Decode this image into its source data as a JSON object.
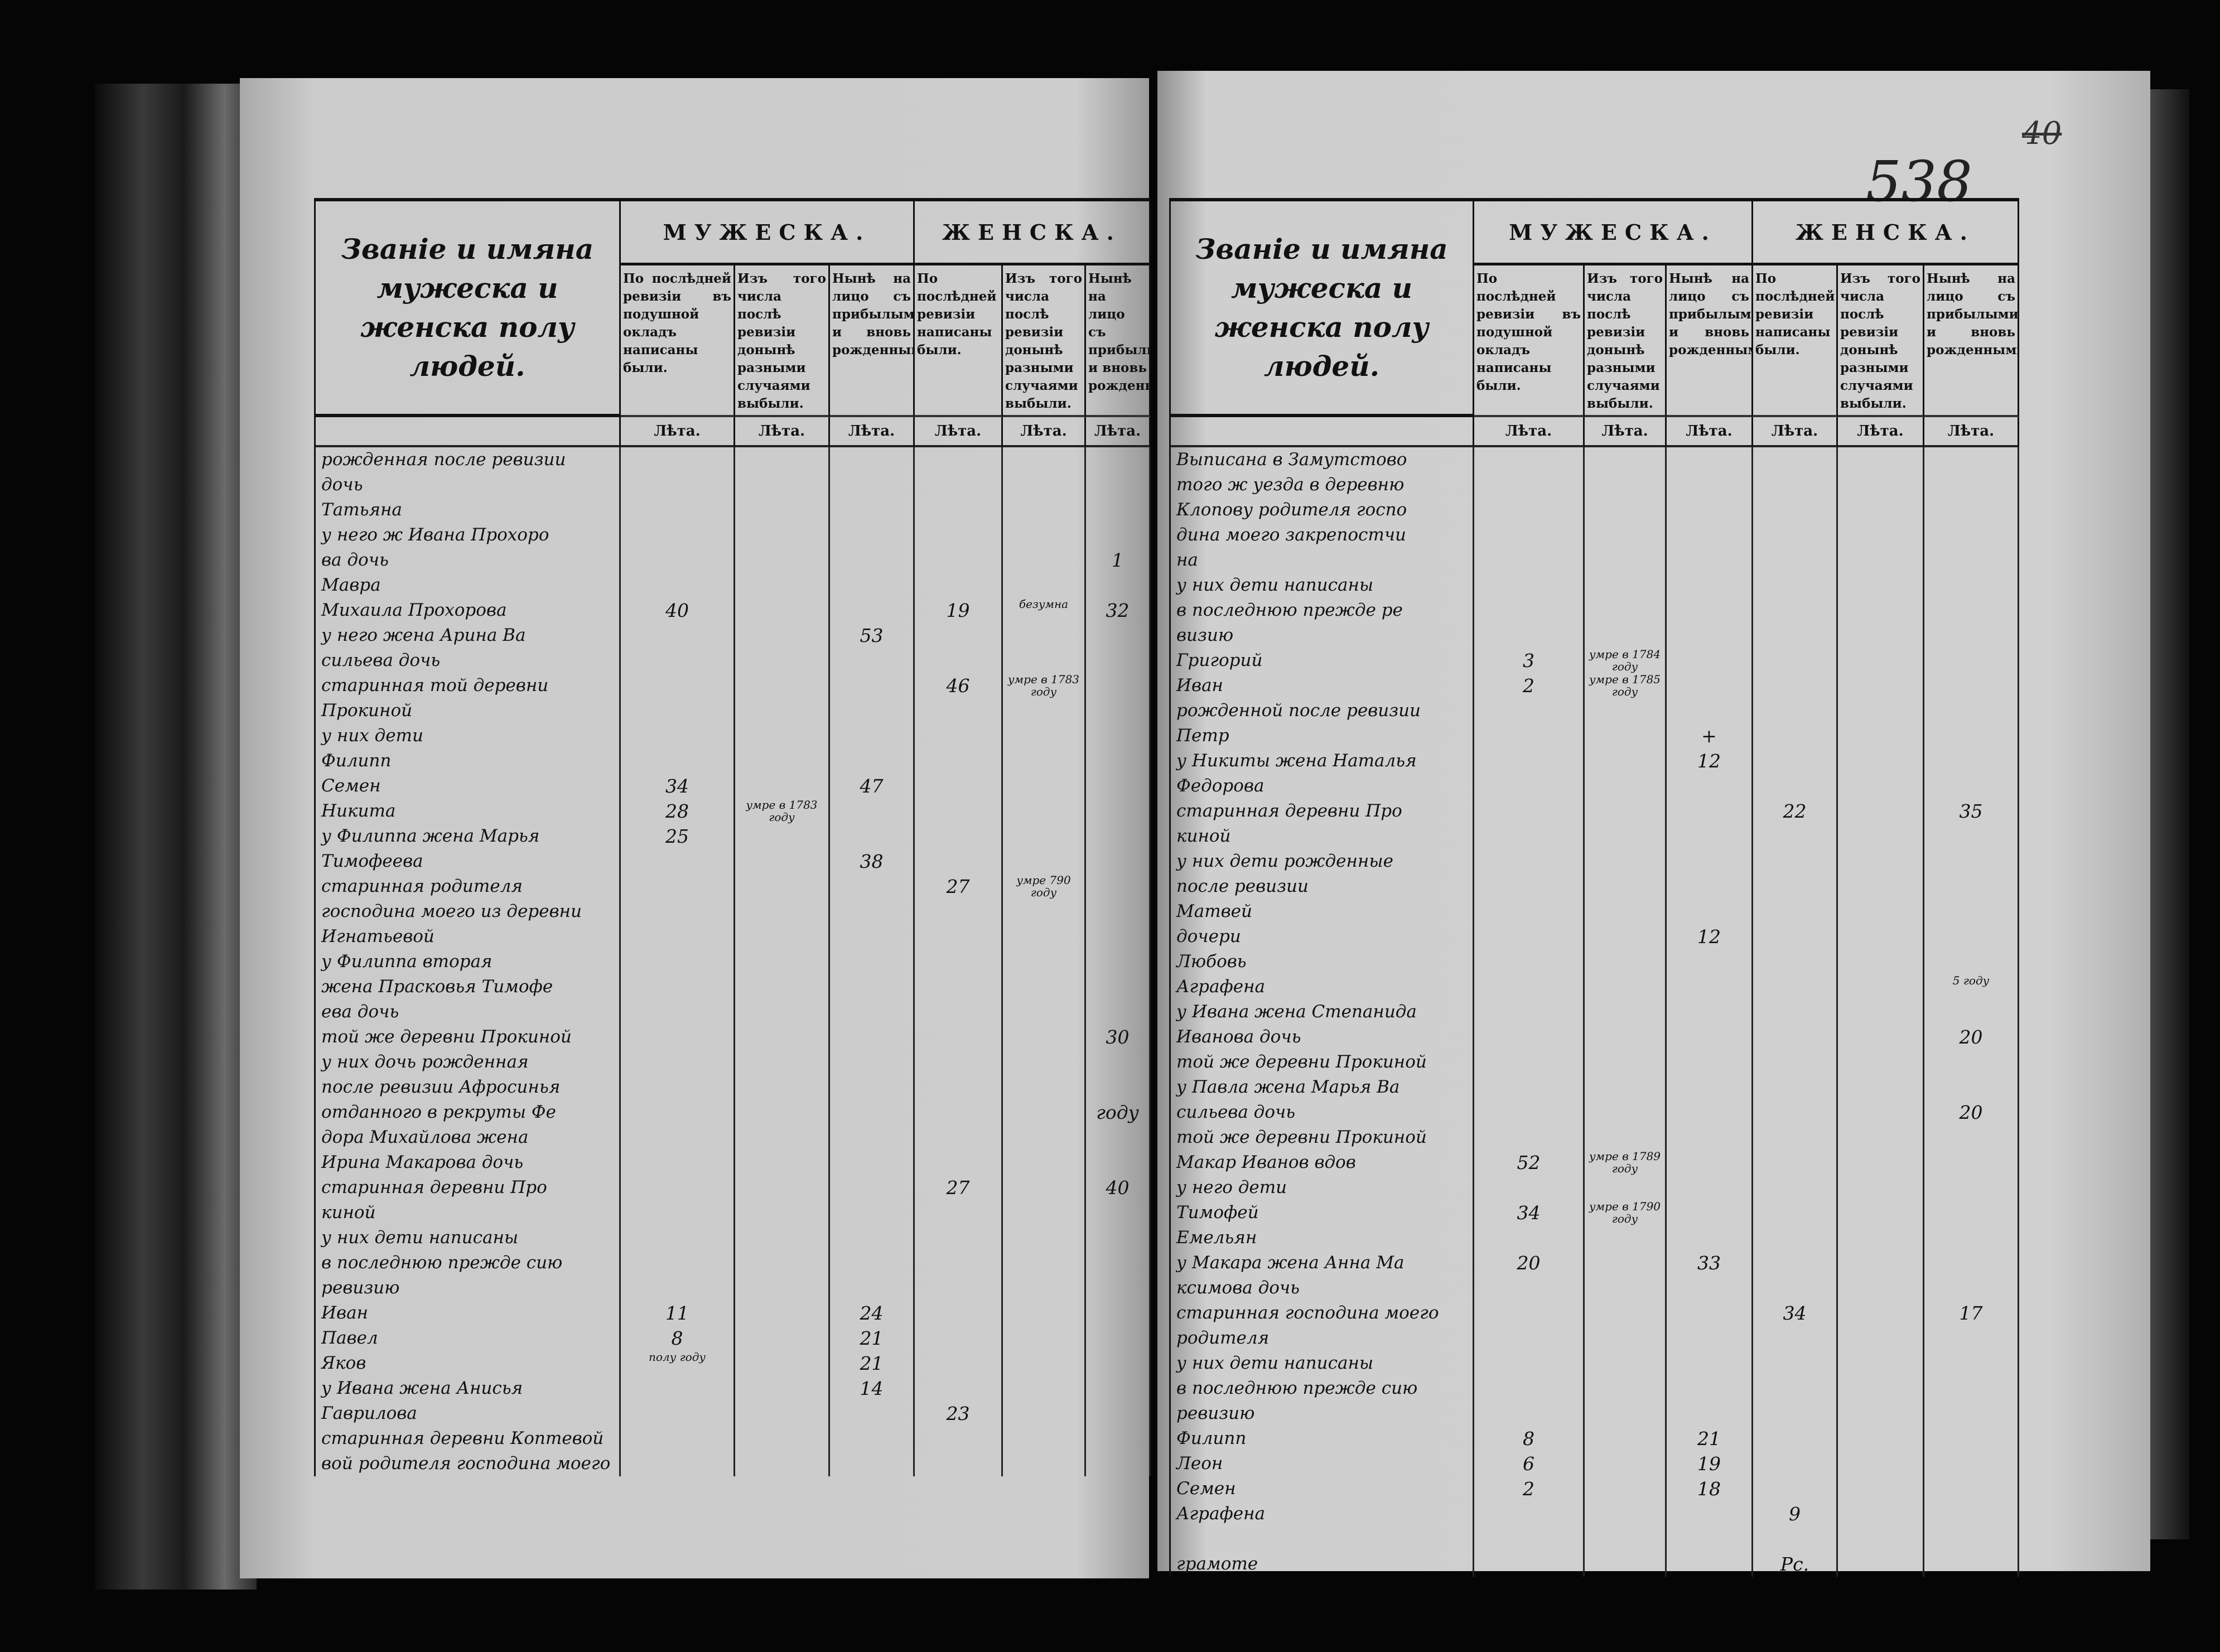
{
  "header": {
    "title": "Званіе и имяна мужеска и женска полу людей.",
    "male": "МУЖЕСКА.",
    "female": "ЖЕНСКА.",
    "sub_male_1": "По послѣдней ревизіи въ подушной окладъ написаны были.",
    "sub_out": "Изъ того числа послѣ ревизіи донынѣ разными случаями выбыли.",
    "sub_now": "Нынѣ на лицо съ прибылыми и вновь рожденными.",
    "sub_female_1": "По послѣдней ревизіи написаны были.",
    "years_label": "Лѣта."
  },
  "left_page": {
    "rows": [
      {
        "t": "рожденная после ревизии",
        "v": [
          "",
          "",
          "",
          "",
          "",
          ""
        ]
      },
      {
        "t": "дочь",
        "v": [
          "",
          "",
          "",
          "",
          "",
          ""
        ]
      },
      {
        "t": "Татьяна",
        "v": [
          "",
          "",
          "",
          "",
          "",
          ""
        ]
      },
      {
        "t": "у него ж Ивана Прохоро",
        "v": [
          "",
          "",
          "",
          "",
          "",
          ""
        ]
      },
      {
        "t": "ва дочь",
        "v": [
          "",
          "",
          "",
          "",
          "",
          "1"
        ]
      },
      {
        "t": "Мавра",
        "v": [
          "",
          "",
          "",
          "",
          "",
          ""
        ]
      },
      {
        "t": "Михаила Прохорова",
        "v": [
          "40",
          "",
          "",
          "19",
          "безумна",
          "32"
        ]
      },
      {
        "t": "у него жена Арина Ва",
        "v": [
          "",
          "",
          "53",
          "",
          "",
          ""
        ]
      },
      {
        "t": "сильева дочь",
        "v": [
          "",
          "",
          "",
          "",
          "",
          ""
        ]
      },
      {
        "t": "старинная той деревни",
        "v": [
          "",
          "",
          "",
          "46",
          "умре в 1783 году",
          ""
        ]
      },
      {
        "t": "Прокиной",
        "v": [
          "",
          "",
          "",
          "",
          "",
          ""
        ]
      },
      {
        "t": "    у них дети",
        "v": [
          "",
          "",
          "",
          "",
          "",
          ""
        ]
      },
      {
        "t": "Филипп",
        "v": [
          "",
          "",
          "",
          "",
          "",
          ""
        ]
      },
      {
        "t": "Семен",
        "v": [
          "34",
          "",
          "47",
          "",
          "",
          ""
        ]
      },
      {
        "t": "Никита",
        "v": [
          "28",
          "умре в 1783 году",
          "",
          "",
          "",
          ""
        ]
      },
      {
        "t": "у Филиппа жена Марья",
        "v": [
          "25",
          "",
          "",
          "",
          "",
          ""
        ]
      },
      {
        "t": "Тимофеева",
        "v": [
          "",
          "",
          "38",
          "",
          "",
          ""
        ]
      },
      {
        "t": "старинная родителя",
        "v": [
          "",
          "",
          "",
          "27",
          "умре 790 году",
          ""
        ]
      },
      {
        "t": "господина моего из деревни",
        "v": [
          "",
          "",
          "",
          "",
          "",
          ""
        ]
      },
      {
        "t": "Игнатьевой",
        "v": [
          "",
          "",
          "",
          "",
          "",
          ""
        ]
      },
      {
        "t": "у Филиппа вторая",
        "v": [
          "",
          "",
          "",
          "",
          "",
          ""
        ]
      },
      {
        "t": "жена Прасковья Тимофе",
        "v": [
          "",
          "",
          "",
          "",
          "",
          ""
        ]
      },
      {
        "t": "ева дочь",
        "v": [
          "",
          "",
          "",
          "",
          "",
          ""
        ]
      },
      {
        "t": "той же деревни Прокиной",
        "v": [
          "",
          "",
          "",
          "",
          "",
          "30"
        ]
      },
      {
        "t": "у них дочь рожденная",
        "v": [
          "",
          "",
          "",
          "",
          "",
          ""
        ]
      },
      {
        "t": "после ревизии Афросинья",
        "v": [
          "",
          "",
          "",
          "",
          "",
          ""
        ]
      },
      {
        "t": "отданного в рекруты Фе",
        "v": [
          "",
          "",
          "",
          "",
          "",
          "году"
        ]
      },
      {
        "t": "дора Михайлова жена",
        "v": [
          "",
          "",
          "",
          "",
          "",
          ""
        ]
      },
      {
        "t": "Ирина Макарова дочь",
        "v": [
          "",
          "",
          "",
          "",
          "",
          ""
        ]
      },
      {
        "t": "старинная деревни Про",
        "v": [
          "",
          "",
          "",
          "27",
          "",
          "40"
        ]
      },
      {
        "t": "киной",
        "v": [
          "",
          "",
          "",
          "",
          "",
          ""
        ]
      },
      {
        "t": "у них дети написаны",
        "v": [
          "",
          "",
          "",
          "",
          "",
          ""
        ]
      },
      {
        "t": "в последнюю прежде сию",
        "v": [
          "",
          "",
          "",
          "",
          "",
          ""
        ]
      },
      {
        "t": "ревизию",
        "v": [
          "",
          "",
          "",
          "",
          "",
          ""
        ]
      },
      {
        "t": "Иван",
        "v": [
          "11",
          "",
          "24",
          "",
          "",
          ""
        ]
      },
      {
        "t": "Павел",
        "v": [
          "8",
          "",
          "21",
          "",
          "",
          ""
        ]
      },
      {
        "t": "Яков",
        "v": [
          "полу году",
          "",
          "21",
          "",
          "",
          ""
        ]
      },
      {
        "t": "у Ивана жена Анисья",
        "v": [
          "",
          "",
          "14",
          "",
          "",
          ""
        ]
      },
      {
        "t": "Гаврилова",
        "v": [
          "",
          "",
          "",
          "23",
          "",
          ""
        ]
      },
      {
        "t": "старинная деревни Коптевой",
        "v": [
          "",
          "",
          "",
          "",
          "",
          ""
        ]
      },
      {
        "t": "вой родителя господина моего",
        "v": [
          "",
          "",
          "",
          "",
          "",
          ""
        ]
      }
    ]
  },
  "right_page": {
    "page_number": "538",
    "old_page_number": "40",
    "rows": [
      {
        "t": "Выписана в Замутстово",
        "v": [
          "",
          "",
          "",
          "",
          "",
          ""
        ]
      },
      {
        "t": "того ж уезда в деревню",
        "v": [
          "",
          "",
          "",
          "",
          "",
          ""
        ]
      },
      {
        "t": "Клопову родителя госпо",
        "v": [
          "",
          "",
          "",
          "",
          "",
          ""
        ]
      },
      {
        "t": "дина моего закрепостчи",
        "v": [
          "",
          "",
          "",
          "",
          "",
          ""
        ]
      },
      {
        "t": "на",
        "v": [
          "",
          "",
          "",
          "",
          "",
          ""
        ]
      },
      {
        "t": "у них дети написаны",
        "v": [
          "",
          "",
          "",
          "",
          "",
          ""
        ]
      },
      {
        "t": "в последнюю прежде ре",
        "v": [
          "",
          "",
          "",
          "",
          "",
          ""
        ]
      },
      {
        "t": "визию",
        "v": [
          "",
          "",
          "",
          "",
          "",
          ""
        ]
      },
      {
        "t": "Григорий",
        "v": [
          "3",
          "умре в 1784 году",
          "",
          "",
          "",
          ""
        ]
      },
      {
        "t": "Иван",
        "v": [
          "2",
          "умре в 1785 году",
          "",
          "",
          "",
          ""
        ]
      },
      {
        "t": "рожденной после ревизии",
        "v": [
          "",
          "",
          "",
          "",
          "",
          ""
        ]
      },
      {
        "t": "Петр",
        "v": [
          "",
          "",
          "+",
          "",
          "",
          ""
        ]
      },
      {
        "t": "у Никиты жена Наталья",
        "v": [
          "",
          "",
          "12",
          "",
          "",
          ""
        ]
      },
      {
        "t": "Федорова",
        "v": [
          "",
          "",
          "",
          "",
          "",
          ""
        ]
      },
      {
        "t": "старинная деревни Про",
        "v": [
          "",
          "",
          "",
          "22",
          "",
          "35"
        ]
      },
      {
        "t": "киной",
        "v": [
          "",
          "",
          "",
          "",
          "",
          ""
        ]
      },
      {
        "t": "у них дети рожденные",
        "v": [
          "",
          "",
          "",
          "",
          "",
          ""
        ]
      },
      {
        "t": "после ревизии",
        "v": [
          "",
          "",
          "",
          "",
          "",
          ""
        ]
      },
      {
        "t": "Матвей",
        "v": [
          "",
          "",
          "",
          "",
          "",
          ""
        ]
      },
      {
        "t": "        дочери",
        "v": [
          "",
          "",
          "12",
          "",
          "",
          ""
        ]
      },
      {
        "t": "Любовь",
        "v": [
          "",
          "",
          "",
          "",
          "",
          ""
        ]
      },
      {
        "t": "Аграфена",
        "v": [
          "",
          "",
          "",
          "",
          "",
          "5 году"
        ]
      },
      {
        "t": "у Ивана жена Степанида",
        "v": [
          "",
          "",
          "",
          "",
          "",
          ""
        ]
      },
      {
        "t": "Иванова дочь",
        "v": [
          "",
          "",
          "",
          "",
          "",
          "20"
        ]
      },
      {
        "t": "той же деревни Прокиной",
        "v": [
          "",
          "",
          "",
          "",
          "",
          ""
        ]
      },
      {
        "t": "у Павла жена Марья Ва",
        "v": [
          "",
          "",
          "",
          "",
          "",
          ""
        ]
      },
      {
        "t": "сильева дочь",
        "v": [
          "",
          "",
          "",
          "",
          "",
          "20"
        ]
      },
      {
        "t": "той же деревни Прокиной",
        "v": [
          "",
          "",
          "",
          "",
          "",
          ""
        ]
      },
      {
        "t": "Макар Иванов вдов",
        "v": [
          "52",
          "умре в 1789 году",
          "",
          "",
          "",
          ""
        ]
      },
      {
        "t": "    у него дети",
        "v": [
          "",
          "",
          "",
          "",
          "",
          ""
        ]
      },
      {
        "t": "Тимофей",
        "v": [
          "34",
          "умре в 1790 году",
          "",
          "",
          "",
          ""
        ]
      },
      {
        "t": "Емельян",
        "v": [
          "",
          "",
          "",
          "",
          "",
          ""
        ]
      },
      {
        "t": "у Макара жена Анна Ма",
        "v": [
          "20",
          "",
          "33",
          "",
          "",
          ""
        ]
      },
      {
        "t": "ксимова дочь",
        "v": [
          "",
          "",
          "",
          "",
          "",
          ""
        ]
      },
      {
        "t": "старинная господина моего",
        "v": [
          "",
          "",
          "",
          "34",
          "",
          "17"
        ]
      },
      {
        "t": "родителя",
        "v": [
          "",
          "",
          "",
          "",
          "",
          ""
        ]
      },
      {
        "t": "у них дети написаны",
        "v": [
          "",
          "",
          "",
          "",
          "",
          ""
        ]
      },
      {
        "t": "в последнюю прежде сию",
        "v": [
          "",
          "",
          "",
          "",
          "",
          ""
        ]
      },
      {
        "t": "ревизию",
        "v": [
          "",
          "",
          "",
          "",
          "",
          ""
        ]
      },
      {
        "t": "Филипп",
        "v": [
          "8",
          "",
          "21",
          "",
          "",
          ""
        ]
      },
      {
        "t": "Леон",
        "v": [
          "6",
          "",
          "19",
          "",
          "",
          ""
        ]
      },
      {
        "t": "Семен",
        "v": [
          "2",
          "",
          "18",
          "",
          "",
          ""
        ]
      },
      {
        "t": "Аграфена",
        "v": [
          "",
          "",
          "",
          "9",
          "",
          ""
        ]
      },
      {
        "t": "",
        "v": [
          "",
          "",
          "",
          "",
          "",
          ""
        ]
      },
      {
        "t": "грамоте",
        "v": [
          "",
          "",
          "",
          "Рс.",
          "",
          ""
        ]
      }
    ]
  }
}
